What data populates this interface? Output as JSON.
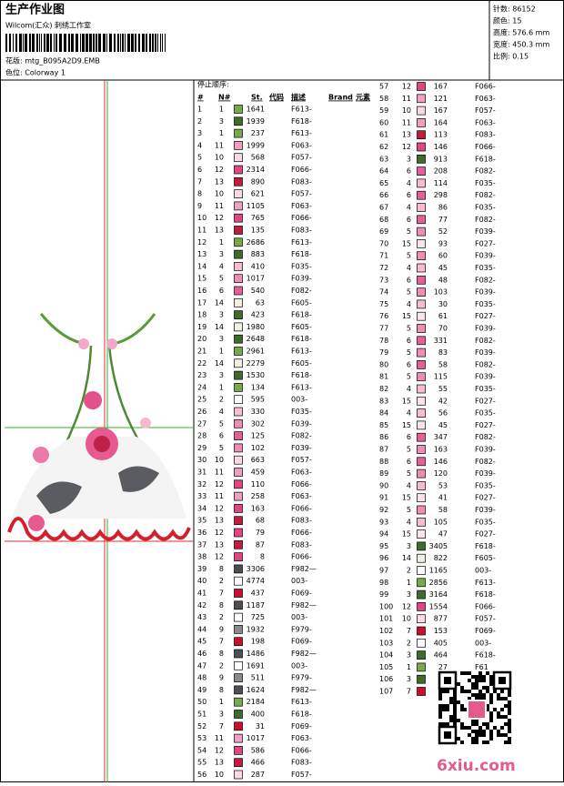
{
  "header": {
    "title": "生产作业图",
    "studio": "Wilcom(汇众) 刺绣工作室",
    "design_file": "花版: mtg_B095A2D9.EMB",
    "colorway": "色位: Colorway 1"
  },
  "info": [
    "针数: 86152",
    "颜色: 15",
    "高度: 576.6 mm",
    "宽度: 450.3 mm",
    "比例: 0.15"
  ],
  "needle_colors": {
    "1": "#79a94a",
    "2": "#ffffff",
    "3": "#3f6b2e",
    "4": "#f7bcd2",
    "5": "#f08db5",
    "6": "#e55f98",
    "7": "#c8102e",
    "8": "#4d4f55",
    "9": "#8a8a8a",
    "10": "#f9d9e5",
    "11": "#f19fc1",
    "12": "#df4682",
    "13": "#bf1f3c",
    "14": "#f1efe2",
    "15": "#fbe3ec"
  },
  "table": {
    "caption": "停止顺序:",
    "columns": [
      "#",
      "N#",
      "St.",
      "代码",
      "描述",
      "Brand",
      "元素"
    ],
    "rows": [
      [
        1,
        1,
        1641,
        "F613-"
      ],
      [
        2,
        3,
        1939,
        "F618-"
      ],
      [
        3,
        1,
        237,
        "F613-"
      ],
      [
        4,
        11,
        1999,
        "F063-"
      ],
      [
        5,
        10,
        568,
        "F057-"
      ],
      [
        6,
        12,
        2314,
        "F066-"
      ],
      [
        7,
        13,
        890,
        "F083-"
      ],
      [
        8,
        10,
        621,
        "F057-"
      ],
      [
        9,
        11,
        1105,
        "F063-"
      ],
      [
        10,
        12,
        765,
        "F066-"
      ],
      [
        11,
        13,
        135,
        "F083-"
      ],
      [
        12,
        1,
        2686,
        "F613-"
      ],
      [
        13,
        3,
        883,
        "F618-"
      ],
      [
        14,
        4,
        410,
        "F035-"
      ],
      [
        15,
        5,
        1017,
        "F039-"
      ],
      [
        16,
        6,
        540,
        "F082-"
      ],
      [
        17,
        14,
        63,
        "F605-"
      ],
      [
        18,
        3,
        423,
        "F618-"
      ],
      [
        19,
        14,
        1980,
        "F605-"
      ],
      [
        20,
        3,
        2648,
        "F618-"
      ],
      [
        21,
        1,
        2961,
        "F613-"
      ],
      [
        22,
        14,
        2279,
        "F605-"
      ],
      [
        23,
        3,
        1530,
        "F618-"
      ],
      [
        24,
        1,
        134,
        "F613-"
      ],
      [
        25,
        2,
        595,
        "003-"
      ],
      [
        26,
        4,
        330,
        "F035-"
      ],
      [
        27,
        5,
        302,
        "F039-"
      ],
      [
        28,
        6,
        125,
        "F082-"
      ],
      [
        29,
        5,
        102,
        "F039-"
      ],
      [
        30,
        10,
        663,
        "F057-"
      ],
      [
        31,
        11,
        459,
        "F063-"
      ],
      [
        32,
        12,
        110,
        "F066-"
      ],
      [
        33,
        11,
        258,
        "F063-"
      ],
      [
        34,
        12,
        163,
        "F066-"
      ],
      [
        35,
        13,
        68,
        "F083-"
      ],
      [
        36,
        12,
        79,
        "F066-"
      ],
      [
        37,
        13,
        87,
        "F083-"
      ],
      [
        38,
        12,
        8,
        "F066-"
      ],
      [
        39,
        8,
        3306,
        "F982—"
      ],
      [
        40,
        2,
        4774,
        "003-"
      ],
      [
        41,
        7,
        437,
        "F069-"
      ],
      [
        42,
        8,
        1187,
        "F982—"
      ],
      [
        43,
        2,
        725,
        "003-"
      ],
      [
        44,
        9,
        1932,
        "F979-"
      ],
      [
        45,
        7,
        198,
        "F069-"
      ],
      [
        46,
        8,
        1486,
        "F982—"
      ],
      [
        47,
        2,
        1691,
        "003-"
      ],
      [
        48,
        9,
        511,
        "F979-"
      ],
      [
        49,
        8,
        1624,
        "F982—"
      ],
      [
        50,
        1,
        2184,
        "F613-"
      ],
      [
        51,
        3,
        400,
        "F618-"
      ],
      [
        52,
        7,
        31,
        "F069-"
      ],
      [
        53,
        11,
        1017,
        "F063-"
      ],
      [
        54,
        12,
        586,
        "F066-"
      ],
      [
        55,
        13,
        466,
        "F083-"
      ],
      [
        56,
        10,
        287,
        "F057-"
      ],
      [
        57,
        12,
        167,
        "F066-"
      ],
      [
        58,
        11,
        121,
        "F063-"
      ],
      [
        59,
        10,
        167,
        "F057-"
      ],
      [
        60,
        11,
        164,
        "F063-"
      ],
      [
        61,
        13,
        113,
        "F083-"
      ],
      [
        62,
        12,
        146,
        "F066-"
      ],
      [
        63,
        3,
        913,
        "F618-"
      ],
      [
        64,
        6,
        208,
        "F082-"
      ],
      [
        65,
        4,
        114,
        "F035-"
      ],
      [
        66,
        6,
        298,
        "F082-"
      ],
      [
        67,
        4,
        86,
        "F035-"
      ],
      [
        68,
        6,
        77,
        "F082-"
      ],
      [
        69,
        5,
        52,
        "F039-"
      ],
      [
        70,
        15,
        93,
        "F027-"
      ],
      [
        71,
        5,
        60,
        "F039-"
      ],
      [
        72,
        4,
        45,
        "F035-"
      ],
      [
        73,
        6,
        48,
        "F082-"
      ],
      [
        74,
        5,
        103,
        "F039-"
      ],
      [
        75,
        4,
        30,
        "F035-"
      ],
      [
        76,
        15,
        61,
        "F027-"
      ],
      [
        77,
        5,
        70,
        "F039-"
      ],
      [
        78,
        6,
        331,
        "F082-"
      ],
      [
        79,
        5,
        83,
        "F039-"
      ],
      [
        80,
        6,
        58,
        "F082-"
      ],
      [
        81,
        5,
        115,
        "F039-"
      ],
      [
        82,
        4,
        55,
        "F035-"
      ],
      [
        83,
        15,
        42,
        "F027-"
      ],
      [
        84,
        4,
        56,
        "F035-"
      ],
      [
        85,
        15,
        45,
        "F027-"
      ],
      [
        86,
        6,
        347,
        "F082-"
      ],
      [
        87,
        5,
        163,
        "F039-"
      ],
      [
        88,
        6,
        146,
        "F082-"
      ],
      [
        89,
        5,
        120,
        "F039-"
      ],
      [
        90,
        4,
        53,
        "F035-"
      ],
      [
        91,
        15,
        41,
        "F027-"
      ],
      [
        92,
        5,
        58,
        "F039-"
      ],
      [
        93,
        4,
        105,
        "F035-"
      ],
      [
        94,
        15,
        47,
        "F027-"
      ],
      [
        95,
        3,
        3405,
        "F618-"
      ],
      [
        96,
        14,
        822,
        "F605-"
      ],
      [
        97,
        2,
        1165,
        "003-"
      ],
      [
        98,
        1,
        2856,
        "F613-"
      ],
      [
        99,
        3,
        3164,
        "F618-"
      ],
      [
        100,
        12,
        1554,
        "F066-"
      ],
      [
        101,
        10,
        877,
        "F057-"
      ],
      [
        102,
        7,
        153,
        "F069-"
      ],
      [
        103,
        2,
        405,
        "003-"
      ],
      [
        104,
        3,
        464,
        "F618-"
      ],
      [
        105,
        1,
        27,
        "F61"
      ],
      [
        106,
        3
      ],
      [
        107,
        7
      ]
    ]
  },
  "watermark": "6xiu.com"
}
